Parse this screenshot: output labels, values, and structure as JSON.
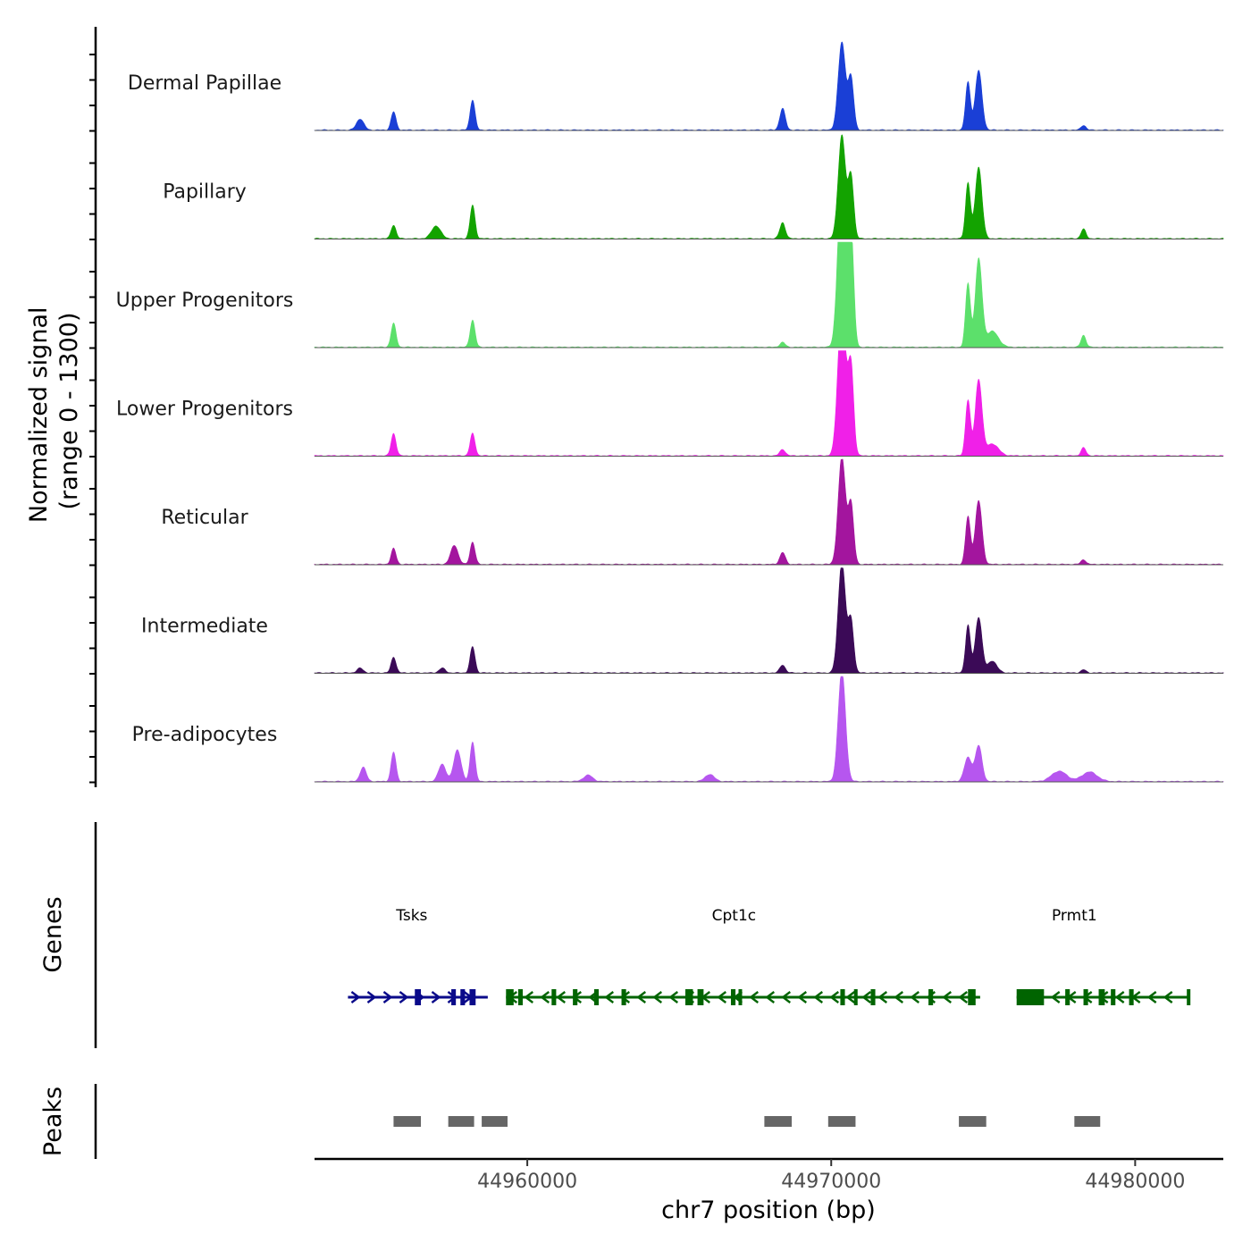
{
  "chart_data": {
    "type": "area",
    "title": "",
    "xlabel": "chr7 position (bp)",
    "ylabel": "Normalized signal\n(range 0 - 1300)",
    "ylabel_lines": [
      "Normalized signal",
      "(range 0 - 1300)"
    ],
    "ylim": [
      0,
      1300
    ],
    "xlim": [
      44953000,
      44982900
    ],
    "x_ticks": [
      44960000,
      44970000,
      44980000
    ],
    "x_tick_labels": [
      "44960000",
      "44970000",
      "44980000"
    ],
    "series": [
      {
        "name": "Dermal Papillae",
        "color": "#1a3fd6",
        "peaks": [
          [
            44954500,
            140,
            120
          ],
          [
            44955600,
            230,
            80
          ],
          [
            44958200,
            380,
            80
          ],
          [
            44968400,
            270,
            90
          ],
          [
            44970350,
            1100,
            120
          ],
          [
            44970650,
            650,
            90
          ],
          [
            44974500,
            600,
            80
          ],
          [
            44974850,
            750,
            110
          ],
          [
            44978300,
            60,
            80
          ]
        ]
      },
      {
        "name": "Papillary",
        "color": "#13a300",
        "peaks": [
          [
            44955600,
            170,
            80
          ],
          [
            44957000,
            160,
            150
          ],
          [
            44958200,
            420,
            80
          ],
          [
            44968400,
            200,
            90
          ],
          [
            44970350,
            1300,
            120
          ],
          [
            44970650,
            780,
            90
          ],
          [
            44974500,
            700,
            80
          ],
          [
            44974850,
            900,
            110
          ],
          [
            44978300,
            120,
            80
          ]
        ]
      },
      {
        "name": "Upper Progenitors",
        "color": "#5ce06b",
        "peaks": [
          [
            44955600,
            300,
            80
          ],
          [
            44958200,
            340,
            80
          ],
          [
            44968400,
            60,
            90
          ],
          [
            44970350,
            2200,
            130
          ],
          [
            44970650,
            1450,
            90
          ],
          [
            44974500,
            800,
            80
          ],
          [
            44974850,
            1100,
            110
          ],
          [
            44975300,
            200,
            200
          ],
          [
            44978300,
            150,
            80
          ]
        ]
      },
      {
        "name": "Lower Progenitors",
        "color": "#f020e8",
        "peaks": [
          [
            44955600,
            280,
            80
          ],
          [
            44958200,
            280,
            80
          ],
          [
            44968400,
            80,
            90
          ],
          [
            44970350,
            1900,
            130
          ],
          [
            44970650,
            1100,
            90
          ],
          [
            44974500,
            700,
            80
          ],
          [
            44974850,
            950,
            110
          ],
          [
            44975300,
            150,
            200
          ],
          [
            44978300,
            100,
            80
          ]
        ]
      },
      {
        "name": "Reticular",
        "color": "#a3159e",
        "peaks": [
          [
            44955600,
            200,
            80
          ],
          [
            44957600,
            240,
            120
          ],
          [
            44958200,
            280,
            80
          ],
          [
            44968400,
            150,
            90
          ],
          [
            44970350,
            1350,
            120
          ],
          [
            44970650,
            750,
            90
          ],
          [
            44974500,
            600,
            80
          ],
          [
            44974850,
            800,
            110
          ],
          [
            44978300,
            60,
            80
          ]
        ]
      },
      {
        "name": "Intermediate",
        "color": "#3b0a57",
        "peaks": [
          [
            44954500,
            60,
            100
          ],
          [
            44955600,
            200,
            80
          ],
          [
            44957200,
            60,
            100
          ],
          [
            44958200,
            330,
            80
          ],
          [
            44968400,
            100,
            90
          ],
          [
            44970350,
            1400,
            120
          ],
          [
            44970650,
            650,
            90
          ],
          [
            44974500,
            600,
            80
          ],
          [
            44974850,
            700,
            110
          ],
          [
            44975300,
            150,
            150
          ],
          [
            44978300,
            40,
            80
          ]
        ]
      },
      {
        "name": "Pre-adipocytes",
        "color": "#b656ef",
        "peaks": [
          [
            44954600,
            180,
            100
          ],
          [
            44955600,
            370,
            80
          ],
          [
            44957200,
            220,
            120
          ],
          [
            44957700,
            400,
            120
          ],
          [
            44958200,
            500,
            80
          ],
          [
            44962000,
            80,
            150
          ],
          [
            44966000,
            90,
            150
          ],
          [
            44970350,
            1400,
            120
          ],
          [
            44974500,
            300,
            120
          ],
          [
            44974850,
            450,
            110
          ],
          [
            44977500,
            130,
            250
          ],
          [
            44978500,
            120,
            250
          ]
        ]
      }
    ],
    "genes": [
      {
        "name": "Tsks",
        "color": "#0a0a8a",
        "strand": "+",
        "start": 44954100,
        "end": 44958700,
        "label_x": 44956200,
        "exons": [
          [
            44956300,
            44956500
          ],
          [
            44957500,
            44957650
          ],
          [
            44957800,
            44957950
          ],
          [
            44958100,
            44958300
          ]
        ]
      },
      {
        "name": "Cpt1c",
        "color": "#006400",
        "strand": "-",
        "start": 44959300,
        "end": 44974900,
        "label_x": 44966800,
        "exons": [
          [
            44959300,
            44959550
          ],
          [
            44959700,
            44959850
          ],
          [
            44960800,
            44960950
          ],
          [
            44961500,
            44961650
          ],
          [
            44962200,
            44962350
          ],
          [
            44963100,
            44963250
          ],
          [
            44965200,
            44965450
          ],
          [
            44965600,
            44965800
          ],
          [
            44966700,
            44966850
          ],
          [
            44966950,
            44967050
          ],
          [
            44970300,
            44970450
          ],
          [
            44970750,
            44970850
          ],
          [
            44971300,
            44971450
          ],
          [
            44973200,
            44973350
          ],
          [
            44974500,
            44974750
          ]
        ]
      },
      {
        "name": "Prmt1",
        "color": "#006400",
        "strand": "-",
        "start": 44976100,
        "end": 44981800,
        "label_x": 44978000,
        "exons": [
          [
            44976100,
            44977000
          ],
          [
            44977700,
            44977850
          ],
          [
            44978300,
            44978450
          ],
          [
            44978800,
            44979000
          ],
          [
            44979200,
            44979350
          ],
          [
            44979800,
            44979950
          ],
          [
            44981700,
            44981800
          ]
        ]
      }
    ],
    "peaks_track": [
      [
        44955600,
        44956500
      ],
      [
        44957400,
        44958250
      ],
      [
        44958500,
        44959350
      ],
      [
        44967800,
        44968700
      ],
      [
        44969900,
        44970800
      ],
      [
        44974200,
        44975100
      ],
      [
        44978000,
        44978850
      ]
    ],
    "tracks": {
      "genes_label": "Genes",
      "peaks_label": "Peaks"
    }
  }
}
